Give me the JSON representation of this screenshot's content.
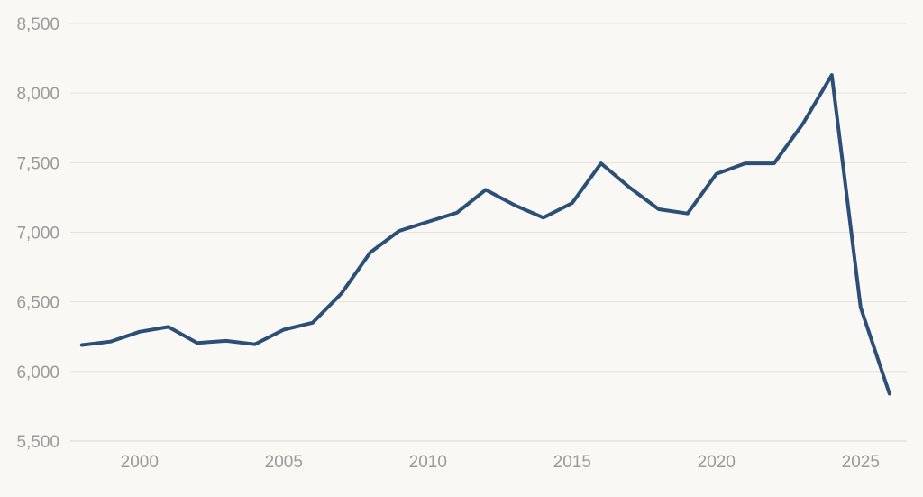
{
  "chart_data": {
    "type": "line",
    "title": "",
    "xlabel": "",
    "ylabel": "",
    "xlim": [
      1997.6,
      2026.6
    ],
    "ylim": [
      5500,
      8500
    ],
    "x_ticks": [
      2000,
      2005,
      2010,
      2015,
      2020,
      2025
    ],
    "x_tick_labels": [
      "2000",
      "2005",
      "2010",
      "2015",
      "2020",
      "2025"
    ],
    "y_ticks": [
      5500,
      6000,
      6500,
      7000,
      7500,
      8000,
      8500
    ],
    "y_tick_labels": [
      "5,500",
      "6,000",
      "6,500",
      "7,000",
      "7,500",
      "8,000",
      "8,500"
    ],
    "grid": "horizontal",
    "legend": "none",
    "series": [
      {
        "color": "#2c4f75",
        "x": [
          1998,
          1999,
          2000,
          2001,
          2002,
          2003,
          2004,
          2005,
          2006,
          2007,
          2008,
          2009,
          2010,
          2011,
          2012,
          2013,
          2014,
          2015,
          2016,
          2017,
          2018,
          2019,
          2020,
          2021,
          2022,
          2023,
          2024,
          2025,
          2026
        ],
        "values": [
          6190,
          6215,
          6285,
          6320,
          6205,
          6220,
          6195,
          6300,
          6350,
          6560,
          6855,
          7010,
          7075,
          7140,
          7305,
          7195,
          7105,
          7210,
          7495,
          7320,
          7165,
          7135,
          7420,
          7495,
          7495,
          7780,
          8130,
          6460,
          5840
        ]
      }
    ]
  }
}
